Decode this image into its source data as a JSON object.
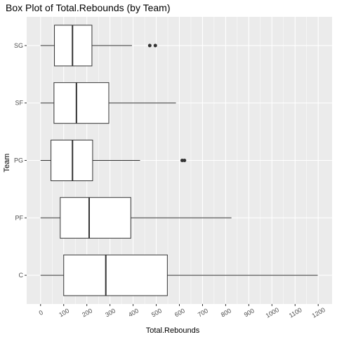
{
  "chart_data": {
    "type": "boxplot",
    "title": "Box Plot of Total.Rebounds (by Team)",
    "xlabel": "Total.Rebounds",
    "ylabel": "Team",
    "xlim": [
      -60,
      1260
    ],
    "x_ticks": [
      "0",
      "100",
      "200",
      "300",
      "400",
      "500",
      "600",
      "700",
      "800",
      "900",
      "1000",
      "1100",
      "1200"
    ],
    "x_tick_values": [
      0,
      100,
      200,
      300,
      400,
      500,
      600,
      700,
      800,
      900,
      1000,
      1100,
      1200
    ],
    "categories": [
      "SG",
      "SF",
      "PG",
      "PF",
      "C"
    ],
    "grid": true,
    "panel_color": "#ebebeb",
    "grid_color": "#ffffff",
    "box_fill": "#ffffff",
    "line_color": "#333333",
    "boxes": [
      {
        "category": "SG",
        "whisker_low": 0,
        "q1": 60,
        "median": 138,
        "q3": 222,
        "whisker_high": 395,
        "outliers": [
          472,
          496
        ]
      },
      {
        "category": "SF",
        "whisker_low": 0,
        "q1": 58,
        "median": 155,
        "q3": 295,
        "whisker_high": 585,
        "outliers": []
      },
      {
        "category": "PG",
        "whisker_low": 0,
        "q1": 45,
        "median": 138,
        "q3": 225,
        "whisker_high": 430,
        "outliers": [
          612,
          622
        ]
      },
      {
        "category": "PF",
        "whisker_low": 0,
        "q1": 85,
        "median": 210,
        "q3": 390,
        "whisker_high": 825,
        "outliers": []
      },
      {
        "category": "C",
        "whisker_low": 0,
        "q1": 100,
        "median": 282,
        "q3": 548,
        "whisker_high": 1198,
        "outliers": []
      }
    ]
  }
}
